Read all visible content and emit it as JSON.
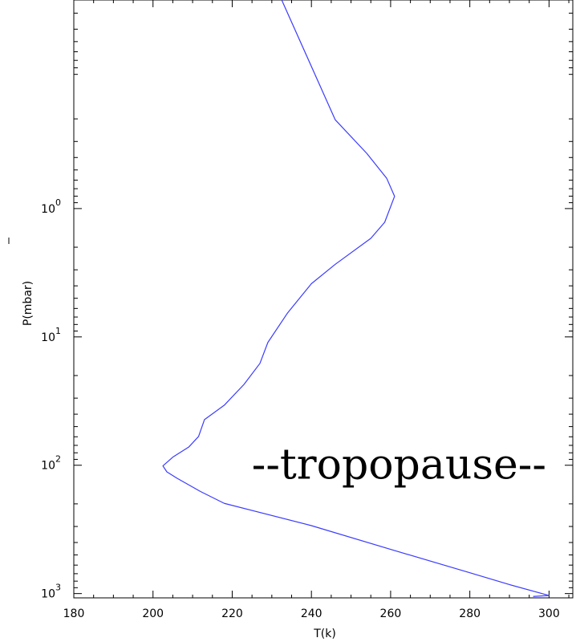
{
  "chart_data": {
    "type": "line",
    "title": "",
    "xlabel": "T(k)",
    "ylabel": "P(mbar)",
    "xlim": [
      180,
      306
    ],
    "ylim": [
      0.0237,
      1080
    ],
    "yscale": "log",
    "y_inverted": true,
    "grid": false,
    "legend": "none",
    "x_ticks": [
      {
        "value": 180,
        "label": "180"
      },
      {
        "value": 200,
        "label": "200"
      },
      {
        "value": 220,
        "label": "220"
      },
      {
        "value": 240,
        "label": "240"
      },
      {
        "value": 260,
        "label": "260"
      },
      {
        "value": 280,
        "label": "280"
      },
      {
        "value": 300,
        "label": "300"
      }
    ],
    "y_ticks": [
      {
        "value": 1,
        "base": "10",
        "exp": "0"
      },
      {
        "value": 10,
        "base": "10",
        "exp": "1"
      },
      {
        "value": 100,
        "base": "10",
        "exp": "2"
      },
      {
        "value": 1000,
        "base": "10",
        "exp": "3"
      }
    ],
    "series": [
      {
        "color": "#3b3bff",
        "points": [
          {
            "x": 232.5,
            "y": 0.0237
          },
          {
            "x": 246,
            "y": 0.203
          },
          {
            "x": 254,
            "y": 0.372
          },
          {
            "x": 259,
            "y": 0.58
          },
          {
            "x": 261,
            "y": 0.802
          },
          {
            "x": 258.5,
            "y": 1.279
          },
          {
            "x": 255,
            "y": 1.707
          },
          {
            "x": 246,
            "y": 2.722
          },
          {
            "x": 240,
            "y": 3.849
          },
          {
            "x": 234,
            "y": 6.494
          },
          {
            "x": 229,
            "y": 11.05
          },
          {
            "x": 227,
            "y": 16.08
          },
          {
            "x": 223,
            "y": 23.4
          },
          {
            "x": 218,
            "y": 34.05
          },
          {
            "x": 213,
            "y": 44.07
          },
          {
            "x": 211.5,
            "y": 59.75
          },
          {
            "x": 209,
            "y": 72.27
          },
          {
            "x": 205,
            "y": 86.47
          },
          {
            "x": 202.5,
            "y": 101.2
          },
          {
            "x": 203.5,
            "y": 112.6
          },
          {
            "x": 206,
            "y": 125.9
          },
          {
            "x": 212,
            "y": 160.3
          },
          {
            "x": 218,
            "y": 198.2
          },
          {
            "x": 240,
            "y": 295.5
          },
          {
            "x": 260,
            "y": 452.3
          },
          {
            "x": 280,
            "y": 688.4
          },
          {
            "x": 290,
            "y": 851.1
          },
          {
            "x": 300,
            "y": 1035
          },
          {
            "x": 296,
            "y": 1053
          }
        ]
      }
    ],
    "annotations": [
      {
        "text": "--tropopause--",
        "x": 253,
        "y": 100
      }
    ]
  }
}
